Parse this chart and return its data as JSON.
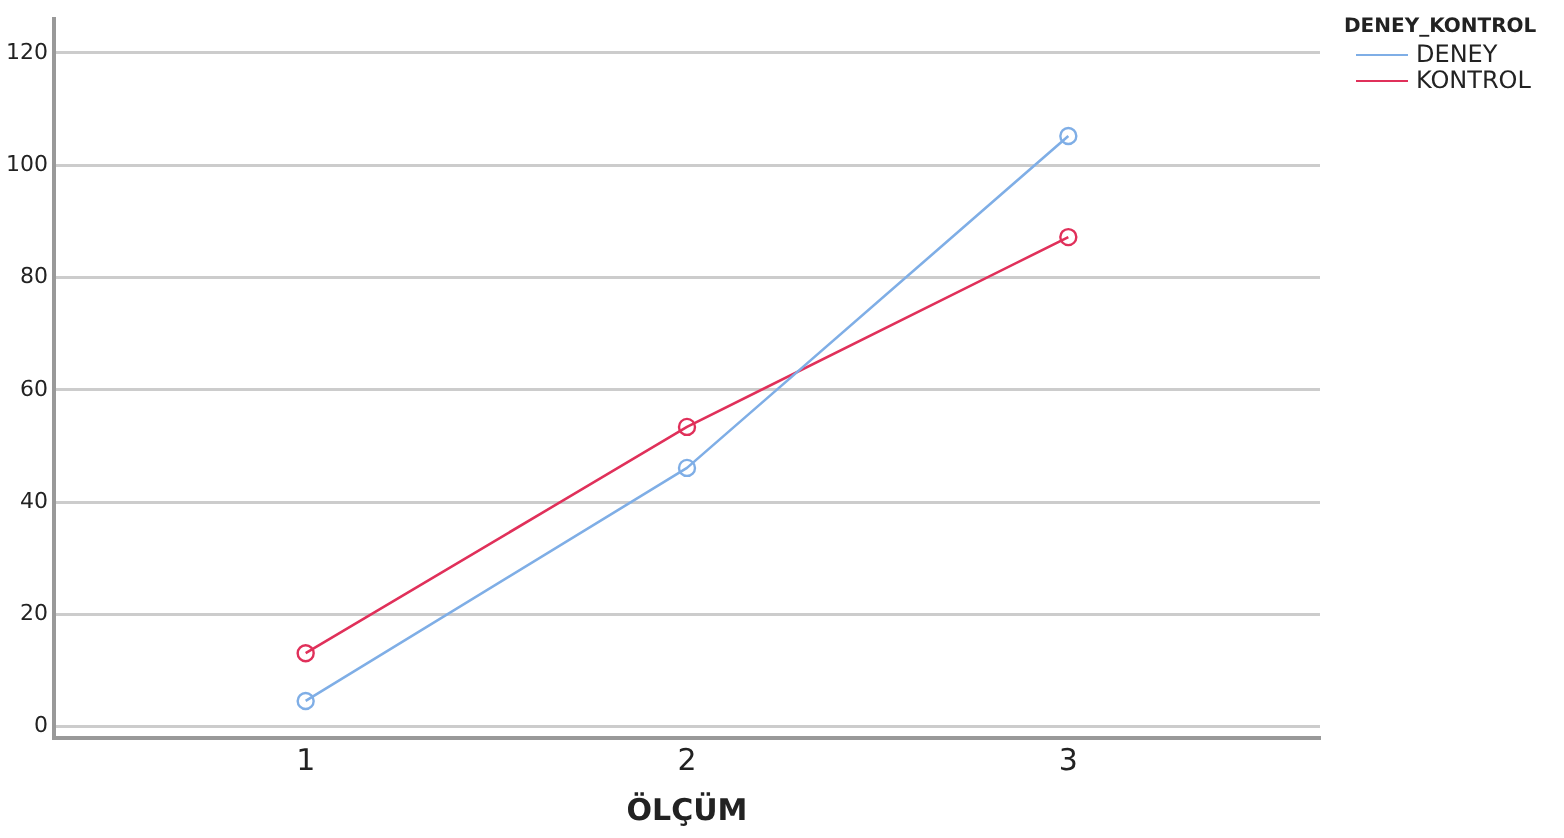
{
  "chart_data": {
    "type": "line",
    "xlabel": "ÖLÇÜM",
    "legend_title": "DENEY_KONTROL",
    "x": [
      1,
      2,
      3
    ],
    "xlim": [
      0.34,
      3.66
    ],
    "xticks": [
      1,
      2,
      3
    ],
    "ylim": [
      -2,
      126
    ],
    "yticks": [
      0,
      20,
      40,
      60,
      80,
      100,
      120
    ],
    "grid": "y",
    "legend": "top right",
    "marker": "circle",
    "line_style": "solid",
    "series": [
      {
        "name": "DENEY",
        "color": "#7faee6",
        "values": [
          4.6,
          46.1,
          105.2
        ]
      },
      {
        "name": "KONTROL",
        "color": "#e0305a",
        "values": [
          13.1,
          53.4,
          87.2
        ]
      }
    ]
  }
}
